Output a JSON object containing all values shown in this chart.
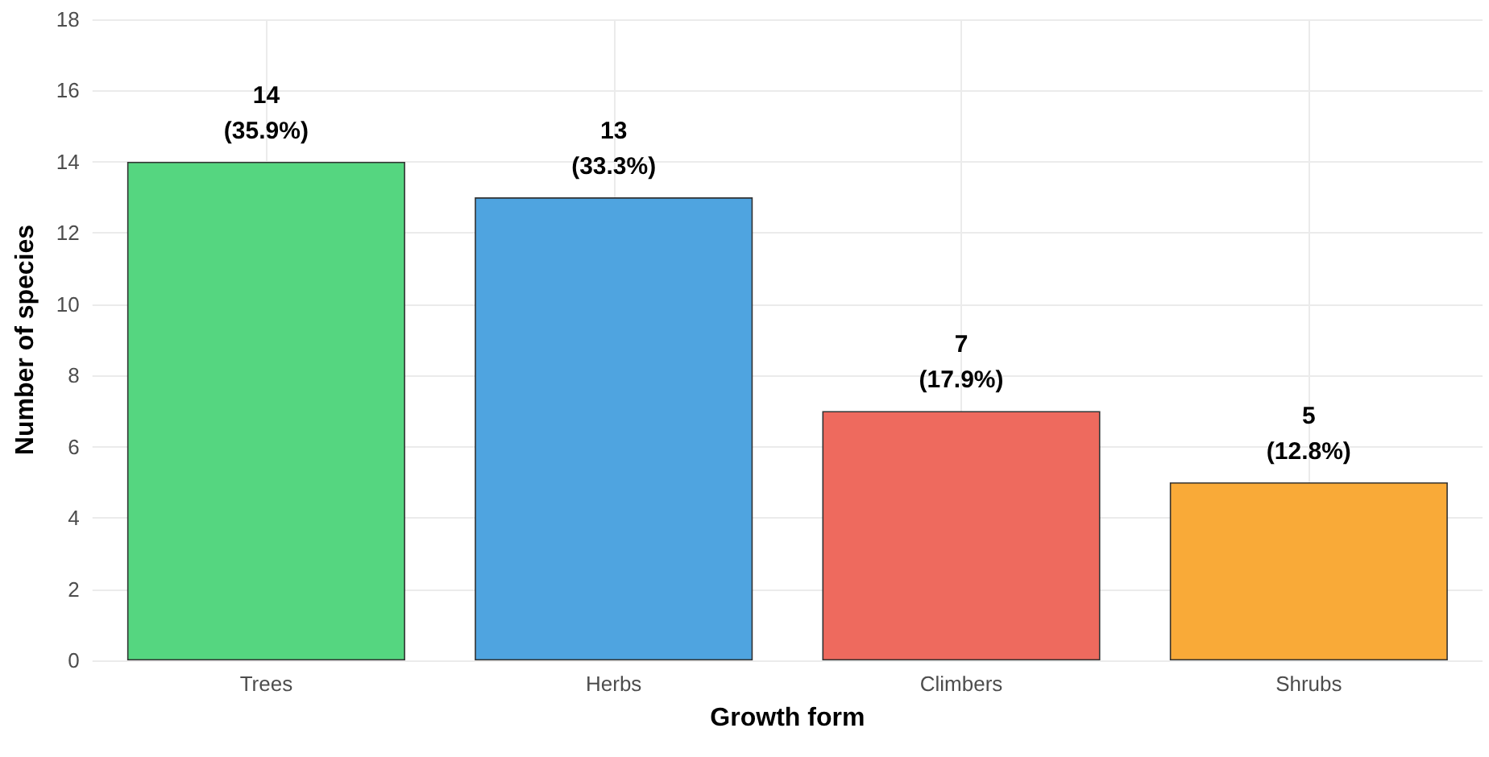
{
  "chart_data": {
    "type": "bar",
    "xlabel": "Growth form",
    "ylabel": "Number of species",
    "categories": [
      "Trees",
      "Herbs",
      "Climbers",
      "Shrubs"
    ],
    "values": [
      14,
      13,
      7,
      5
    ],
    "colors": [
      "#55d680",
      "#4fa4e0",
      "#ee6a5e",
      "#f9aa38"
    ],
    "value_labels": [
      "14\n(35.9%)",
      "13\n(33.3%)",
      "7\n(17.9%)",
      "5\n(12.8%)"
    ],
    "ylim": [
      0,
      18
    ],
    "yticks": [
      0,
      2,
      4,
      6,
      8,
      10,
      12,
      14,
      16,
      18
    ],
    "grid": true
  }
}
